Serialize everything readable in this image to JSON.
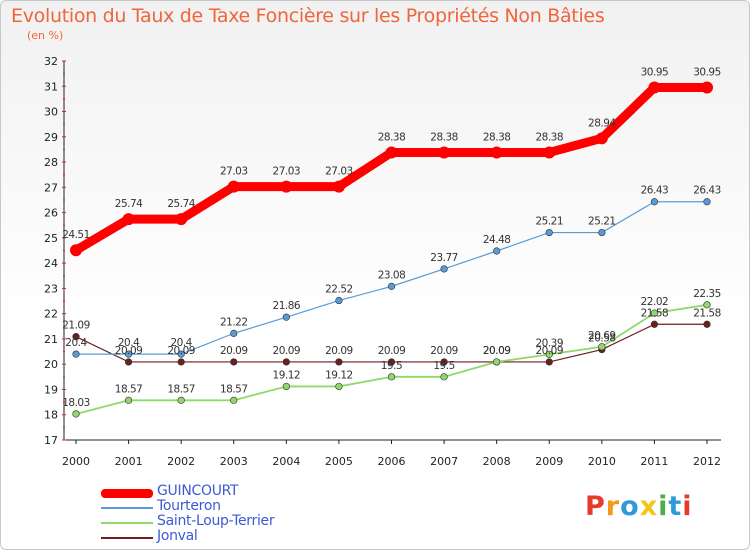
{
  "header": {
    "title": "Evolution du Taux de Taxe Foncière sur les Propriétés Non Bâties",
    "subtitle": "(en %)"
  },
  "logo": {
    "text": "Proxiti",
    "colors": [
      "#e63a2a",
      "#f39a1b",
      "#2f9ad8",
      "#f3c419",
      "#4bb04a",
      "#2f9ad8",
      "#e63a2a"
    ]
  },
  "chart_data": {
    "type": "line",
    "title": "Evolution du Taux de Taxe Foncière sur les Propriétés Non Bâties",
    "ylabel": "(en %)",
    "xlabel": "",
    "x": [
      "2000",
      "2001",
      "2002",
      "2003",
      "2004",
      "2005",
      "2006",
      "2007",
      "2008",
      "2009",
      "2010",
      "2011",
      "2012"
    ],
    "ylim": [
      17,
      32
    ],
    "yticks": [
      "17",
      "18",
      "19",
      "20",
      "21",
      "22",
      "23",
      "24",
      "25",
      "26",
      "27",
      "28",
      "29",
      "30",
      "31",
      "32"
    ],
    "grid": false,
    "legend": "bottom-left",
    "series": [
      {
        "name": "GUINCOURT",
        "color": "#ff0000",
        "values": [
          24.51,
          25.74,
          25.74,
          27.03,
          27.03,
          27.03,
          28.38,
          28.38,
          28.38,
          28.38,
          28.94,
          30.95,
          30.95
        ],
        "labels": [
          "24.51",
          "25.74",
          "25.74",
          "27.03",
          "27.03",
          "27.03",
          "28.38",
          "28.38",
          "28.38",
          "28.38",
          "28.94",
          "30.95",
          "30.95"
        ]
      },
      {
        "name": "Tourteron",
        "color": "#5a9ad5",
        "values": [
          20.4,
          20.4,
          20.4,
          21.22,
          21.86,
          22.52,
          23.08,
          23.77,
          24.48,
          25.21,
          25.21,
          26.43,
          26.43
        ],
        "labels": [
          "20.4",
          "20.4",
          "20.4",
          "21.22",
          "21.86",
          "22.52",
          "23.08",
          "23.77",
          "24.48",
          "25.21",
          "25.21",
          "26.43",
          "26.43"
        ]
      },
      {
        "name": "Saint-Loup-Terrier",
        "color": "#8fd96a",
        "values": [
          18.03,
          18.57,
          18.57,
          18.57,
          19.12,
          19.12,
          19.5,
          19.5,
          20.09,
          20.39,
          20.69,
          22.02,
          22.35
        ],
        "labels": [
          "18.03",
          "18.57",
          "18.57",
          "18.57",
          "19.12",
          "19.12",
          "19.5",
          "19.5",
          "20.09",
          "20.39",
          "20.69",
          "22.02",
          "22.35"
        ]
      },
      {
        "name": "Jonval",
        "color": "#6b1f1f",
        "values": [
          21.09,
          20.09,
          20.09,
          20.09,
          20.09,
          20.09,
          20.09,
          20.09,
          20.09,
          20.09,
          20.58,
          21.58,
          21.58
        ],
        "labels": [
          "21.09",
          "20.09",
          "20.09",
          "20.09",
          "20.09",
          "20.09",
          "20.09",
          "20.09",
          "20.09",
          "20.09",
          "20.58",
          "21.58",
          "21.58"
        ]
      }
    ]
  }
}
